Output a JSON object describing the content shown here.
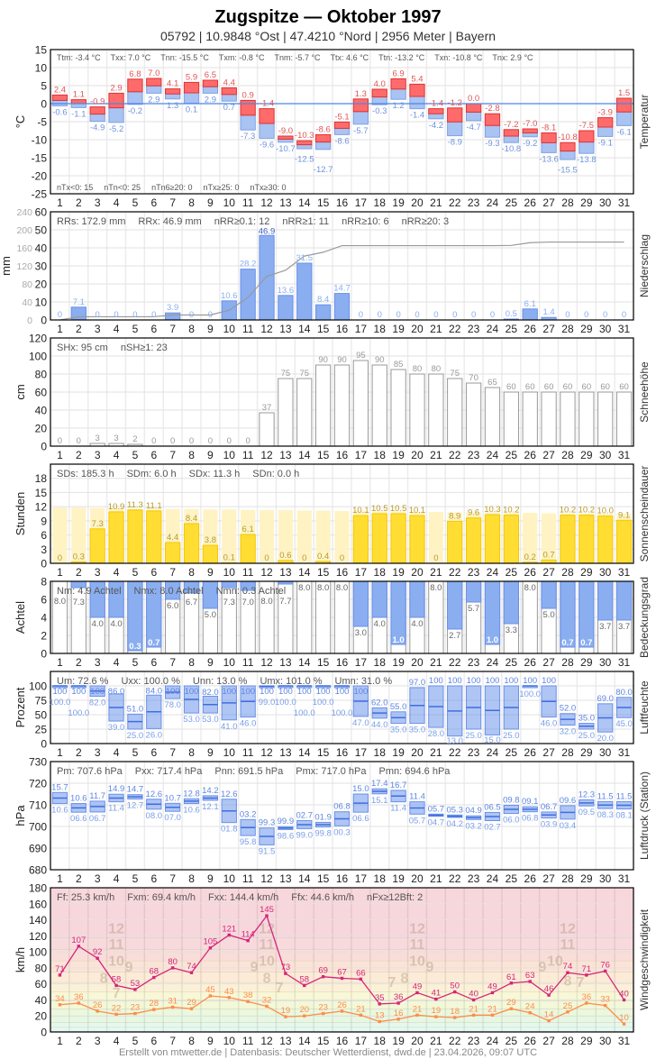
{
  "header": {
    "title": "Zugspitze  —  Oktober 1997",
    "subtitle": "05792  |  10.9848 °Ost  |  47.4210 °Nord  |  2956 Meter  |  Bayern"
  },
  "footer": "Erstellt von mtwetter.de | Datenbasis: Deutscher Wetterdienst, dwd.de | 23.04.2026, 09:07 UTC",
  "chart_data": [
    {
      "type": "bar",
      "title": "Temperatur",
      "ylabel": "°C",
      "ylim": [
        -25,
        15
      ],
      "yticks": [
        15,
        10,
        5,
        0,
        -5,
        -10,
        -15,
        -20,
        -25
      ],
      "categories": [
        1,
        2,
        3,
        4,
        5,
        6,
        7,
        8,
        9,
        10,
        11,
        12,
        13,
        14,
        15,
        16,
        17,
        18,
        19,
        20,
        21,
        22,
        23,
        24,
        25,
        26,
        27,
        28,
        29,
        30,
        31
      ],
      "series": [
        {
          "name": "Tx",
          "values": [
            2.4,
            1.1,
            -0.9,
            2.9,
            6.8,
            7.0,
            4.1,
            5.9,
            6.5,
            4.4,
            0.9,
            -1.4,
            -9.0,
            -10.3,
            -8.6,
            -5.1,
            1.3,
            4.0,
            6.9,
            5.4,
            -1.4,
            -1.2,
            0.0,
            -2.8,
            -7.2,
            -7.0,
            -8.1,
            -10.8,
            -7.5,
            -3.9,
            1.5
          ]
        },
        {
          "name": "Tn",
          "values": [
            -0.6,
            -1.1,
            -4.9,
            -5.2,
            -0.2,
            2.9,
            1.3,
            0.1,
            2.9,
            0.7,
            -7.3,
            -9.6,
            -10.7,
            -12.5,
            -12.7,
            -8.6,
            -5.7,
            -0.3,
            1.2,
            -1.4,
            -4.2,
            -8.9,
            -4.7,
            -9.3,
            -10.8,
            -9.2,
            -13.6,
            -15.5,
            -13.8,
            -9.1,
            -6.1
          ]
        }
      ],
      "stats": [
        "Ttm: -3.4 °C",
        "Txx: 7.0 °C",
        "Tnn: -15.5 °C",
        "Txm: -0.8 °C",
        "Tnm: -5.7 °C",
        "Ttx: 4.6 °C",
        "Ttn: -13.2 °C",
        "Txn: -10.8 °C",
        "Tnx: 2.9 °C"
      ],
      "stats2": [
        "nTx<0: 15",
        "nTn<0: 25",
        "nTn6≥20: 0",
        "nTx≥25: 0",
        "nTx≥30: 0"
      ],
      "colors": {
        "max": "#ff6b6b",
        "min": "#a9c3f2",
        "zero_line": "#4a86e8"
      }
    },
    {
      "type": "bar",
      "title": "Niederschlag",
      "ylabel": "mm",
      "ylim": [
        0,
        60
      ],
      "ylim_cumulative": [
        0,
        240
      ],
      "yticks": [
        0,
        10,
        20,
        30,
        40,
        50,
        60
      ],
      "yticks_cumulative": [
        0,
        40,
        80,
        120,
        160,
        200,
        240
      ],
      "categories": [
        1,
        2,
        3,
        4,
        5,
        6,
        7,
        8,
        9,
        10,
        11,
        12,
        13,
        14,
        15,
        16,
        17,
        18,
        19,
        20,
        21,
        22,
        23,
        24,
        25,
        26,
        27,
        28,
        29,
        30,
        31
      ],
      "values": [
        0,
        7.1,
        0,
        0,
        0,
        0,
        3.9,
        0,
        0,
        10.6,
        28.2,
        46.9,
        13.6,
        31.5,
        8.4,
        14.7,
        0,
        0,
        0,
        0,
        0,
        0,
        0,
        0,
        0.5,
        6.1,
        1.4,
        0,
        0,
        0,
        0
      ],
      "stats": [
        "RRs: 172.9 mm",
        "RRx: 46.9 mm",
        "nRR≥0.1: 12",
        "nRR≥1: 11",
        "nRR≥10: 6",
        "nRR≥20: 3"
      ],
      "colors": {
        "bar": "#8aaef0",
        "cumulative": "#999999"
      }
    },
    {
      "type": "bar",
      "title": "Schneehöhe",
      "ylabel": "cm",
      "ylim": [
        0,
        120
      ],
      "yticks": [
        0,
        20,
        40,
        60,
        80,
        100,
        120
      ],
      "categories": [
        1,
        2,
        3,
        4,
        5,
        6,
        7,
        8,
        9,
        10,
        11,
        12,
        13,
        14,
        15,
        16,
        17,
        18,
        19,
        20,
        21,
        22,
        23,
        24,
        25,
        26,
        27,
        28,
        29,
        30,
        31
      ],
      "values": [
        0,
        0,
        3,
        3,
        2,
        0,
        0,
        0,
        0,
        0,
        0,
        37,
        75,
        75,
        90,
        90,
        95,
        90,
        85,
        80,
        80,
        75,
        70,
        65,
        60,
        60,
        60,
        60,
        60,
        60,
        60
      ],
      "stats": [
        "SHx: 95 cm",
        "nSH≥1: 23"
      ]
    },
    {
      "type": "bar",
      "title": "Sonnenscheindauer",
      "ylabel": "Stunden",
      "ylim": [
        0,
        21
      ],
      "yticks": [
        0,
        3,
        6,
        9,
        12,
        15,
        18
      ],
      "categories": [
        1,
        2,
        3,
        4,
        5,
        6,
        7,
        8,
        9,
        10,
        11,
        12,
        13,
        14,
        15,
        16,
        17,
        18,
        19,
        20,
        21,
        22,
        23,
        24,
        25,
        26,
        27,
        28,
        29,
        30,
        31
      ],
      "values": [
        0,
        0.3,
        7.3,
        10.9,
        11.3,
        11.1,
        4.4,
        8.4,
        3.8,
        0.1,
        6.1,
        0,
        0.6,
        0,
        0.4,
        0,
        10.1,
        10.5,
        10.5,
        10.1,
        0,
        8.9,
        9.6,
        10.3,
        10.2,
        0.2,
        0.7,
        10.2,
        10.2,
        10.0,
        9.1
      ],
      "possible": [
        11.8,
        11.8,
        11.7,
        11.7,
        11.6,
        11.6,
        11.5,
        11.5,
        11.4,
        11.4,
        11.3,
        11.3,
        11.3,
        11.2,
        11.2,
        11.1,
        11.1,
        11.0,
        11.0,
        10.9,
        10.9,
        10.8,
        10.8,
        10.8,
        10.7,
        10.7,
        10.6,
        10.6,
        10.6,
        10.5,
        10.5
      ],
      "stats": [
        "SDs: 185.3 h",
        "SDm: 6.0 h",
        "SDx: 11.3 h",
        "SDn: 0.0 h"
      ],
      "colors": {
        "bar": "#ffdd33",
        "possible": "#fff3c4",
        "label": "#b89a2a"
      }
    },
    {
      "type": "bar",
      "title": "Bedeckungsgrad",
      "ylabel": "Achtel",
      "ylim": [
        0,
        8
      ],
      "yticks": [
        0,
        2,
        4,
        6,
        8
      ],
      "categories": [
        1,
        2,
        3,
        4,
        5,
        6,
        7,
        8,
        9,
        10,
        11,
        12,
        13,
        14,
        15,
        16,
        17,
        18,
        19,
        20,
        21,
        22,
        23,
        24,
        25,
        26,
        27,
        28,
        29,
        30,
        31
      ],
      "values": [
        8.0,
        7.3,
        4.0,
        4.0,
        0.3,
        0.7,
        6.0,
        6.7,
        5.0,
        7.3,
        7.0,
        8.0,
        7.7,
        8.0,
        8.0,
        8.0,
        3.0,
        4.0,
        1.0,
        4.0,
        8.0,
        2.7,
        5.7,
        1.0,
        3.3,
        8.0,
        5.0,
        0.7,
        0.7,
        3.7,
        3.7
      ],
      "stats": [
        "Nm: 4.9 Achtel",
        "Nmx: 8.0 Achtel",
        "Nmn: 0.3 Achtel"
      ],
      "colors": {
        "clear": "#8aaef0",
        "cloud": "#ffffff"
      }
    },
    {
      "type": "bar",
      "title": "Luftfeuchte",
      "ylabel": "Prozent",
      "ylim": [
        0,
        125
      ],
      "yticks": [
        0,
        25,
        50,
        75,
        100
      ],
      "categories": [
        1,
        2,
        3,
        4,
        5,
        6,
        7,
        8,
        9,
        10,
        11,
        12,
        13,
        14,
        15,
        16,
        17,
        18,
        19,
        20,
        21,
        22,
        23,
        24,
        25,
        26,
        27,
        28,
        29,
        30,
        31
      ],
      "series": [
        {
          "name": "max",
          "values": [
            100,
            100,
            100,
            86,
            51,
            84,
            100,
            100,
            82,
            100,
            100,
            100,
            100,
            100,
            100,
            100,
            100,
            62,
            55,
            97,
            100,
            100,
            100,
            100,
            100,
            100,
            100,
            52,
            35,
            69,
            80
          ]
        },
        {
          "name": "min",
          "values": [
            100,
            100,
            82,
            39,
            25,
            26,
            78,
            53,
            53,
            41,
            46,
            99,
            100,
            100,
            100,
            100,
            47,
            44,
            35,
            35,
            28,
            13,
            25,
            15,
            25,
            100,
            46,
            32,
            25,
            20,
            45
          ]
        }
      ],
      "stats": [
        "Um: 72.6 %",
        "Uxx: 100.0 %",
        "Unn: 13.0 %",
        "Umx: 101.0 %",
        "Umn: 31.0 %"
      ]
    },
    {
      "type": "bar",
      "title": "Luftdruck (Station)",
      "ylabel": "hPa",
      "ylim": [
        680,
        730
      ],
      "yticks": [
        680,
        690,
        700,
        710,
        720,
        730
      ],
      "categories": [
        1,
        2,
        3,
        4,
        5,
        6,
        7,
        8,
        9,
        10,
        11,
        12,
        13,
        14,
        15,
        16,
        17,
        18,
        19,
        20,
        21,
        22,
        23,
        24,
        25,
        26,
        27,
        28,
        29,
        30,
        31
      ],
      "series": [
        {
          "name": "max",
          "values": [
            715.7,
            710.6,
            711.7,
            714.9,
            714.7,
            712.6,
            710.7,
            712.8,
            714.2,
            712.6,
            703.2,
            699.3,
            699.9,
            702.7,
            701.9,
            706.8,
            715.0,
            717.4,
            716.7,
            711.4,
            705.7,
            705.3,
            704.9,
            706.5,
            709.8,
            709.1,
            706.7,
            709.6,
            712.3,
            711.5,
            711.5
          ]
        },
        {
          "name": "min",
          "values": [
            710.6,
            706.6,
            706.7,
            711.4,
            712.7,
            708.0,
            707.0,
            710.6,
            712.1,
            701.8,
            695.8,
            691.5,
            698.6,
            699.0,
            699.8,
            700.3,
            706.6,
            715.1,
            711.4,
            705.7,
            704.7,
            704.2,
            703.2,
            702.7,
            706.0,
            706.8,
            703.9,
            703.4,
            709.5,
            708.3,
            708.1
          ]
        }
      ],
      "stats": [
        "Pm: 707.6 hPa",
        "Pxx: 717.4 hPa",
        "Pnn: 691.5 hPa",
        "Pmx: 717.0 hPa",
        "Pmn: 694.6 hPa"
      ]
    },
    {
      "type": "line",
      "title": "Windgeschwindigkeit",
      "ylabel": "km/h",
      "ylim": [
        0,
        180
      ],
      "yticks": [
        0,
        20,
        40,
        60,
        80,
        100,
        120,
        140,
        160,
        180
      ],
      "categories": [
        1,
        2,
        3,
        4,
        5,
        6,
        7,
        8,
        9,
        10,
        11,
        12,
        13,
        14,
        15,
        16,
        17,
        18,
        19,
        20,
        21,
        22,
        23,
        24,
        25,
        26,
        27,
        28,
        29,
        30,
        31
      ],
      "series": [
        {
          "name": "Fx",
          "values": [
            71,
            107,
            92,
            58,
            53,
            68,
            80,
            74,
            105,
            121,
            114,
            145,
            73,
            58,
            69,
            67,
            66,
            35,
            36,
            49,
            41,
            50,
            40,
            49,
            61,
            63,
            46,
            74,
            71,
            76,
            40
          ]
        },
        {
          "name": "Fm",
          "values": [
            34,
            36,
            26,
            22,
            23,
            28,
            31,
            29,
            45,
            43,
            38,
            32,
            19,
            20,
            23,
            26,
            21,
            13,
            16,
            21,
            19,
            18,
            21,
            21,
            29,
            24,
            14,
            25,
            36,
            33,
            10
          ]
        }
      ],
      "beaufort_labels": [
        "12",
        "11",
        "10",
        "9",
        "8",
        "7"
      ],
      "stats": [
        "Ff: 25.3 km/h",
        "Fxm: 69.4 km/h",
        "Fxx: 144.4 km/h",
        "Ffx: 44.6 km/h",
        "nFx≥12Bft: 2"
      ],
      "colors": {
        "gust": "#d6247a",
        "mean": "#ff8c4a"
      }
    }
  ]
}
